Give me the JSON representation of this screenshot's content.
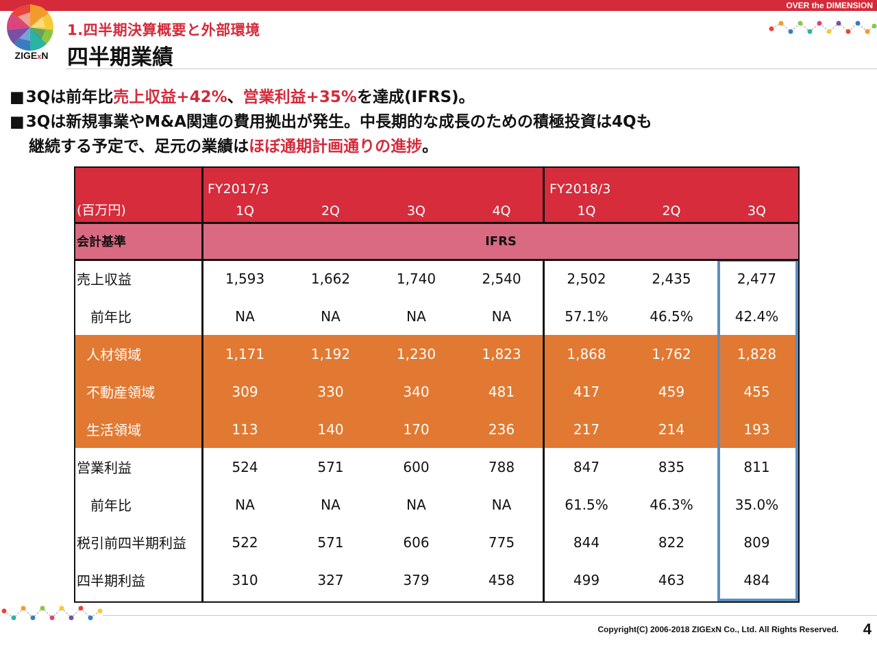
{
  "header": {
    "tagline": "OVER the DIMENSION",
    "logo_text_a": "ZIGE",
    "logo_text_x": "x",
    "logo_text_b": "N",
    "subtitle": "1.四半期決算概要と外部環境",
    "title": "四半期業績"
  },
  "bullets": {
    "marker": "■",
    "b1_a": "3Qは前年比",
    "b1_hl1": "売上収益+42%",
    "b1_b": "、",
    "b1_hl2": "営業利益+35%",
    "b1_c": "を達成(IFRS)。",
    "b2_a": "3Qは新規事業やM&A関連の費用拠出が発生。中長期的な成長のための積極投資は4Qも",
    "b2_b": "継続する予定で、足元の業績は",
    "b2_hl": "ほぼ通期計画通りの進捗",
    "b2_c": "。"
  },
  "table": {
    "unit": "(百万円)",
    "fy1": "FY2017/3",
    "fy2": "FY2018/3",
    "quarters": [
      "1Q",
      "2Q",
      "3Q",
      "4Q",
      "1Q",
      "2Q",
      "3Q"
    ],
    "standard_label": "会計基準",
    "standard_value": "IFRS",
    "rows": [
      {
        "label": "売上収益",
        "values": [
          "1,593",
          "1,662",
          "1,740",
          "2,540",
          "2,502",
          "2,435",
          "2,477"
        ]
      },
      {
        "label": "前年比",
        "values": [
          "NA",
          "NA",
          "NA",
          "NA",
          "57.1%",
          "46.5%",
          "42.4%"
        ]
      },
      {
        "label": "人材領域",
        "values": [
          "1,171",
          "1,192",
          "1,230",
          "1,823",
          "1,868",
          "1,762",
          "1,828"
        ]
      },
      {
        "label": "不動産領域",
        "values": [
          "309",
          "330",
          "340",
          "481",
          "417",
          "459",
          "455"
        ]
      },
      {
        "label": "生活領域",
        "values": [
          "113",
          "140",
          "170",
          "236",
          "217",
          "214",
          "193"
        ]
      },
      {
        "label": "営業利益",
        "values": [
          "524",
          "571",
          "600",
          "788",
          "847",
          "835",
          "811"
        ]
      },
      {
        "label": "前年比",
        "values": [
          "NA",
          "NA",
          "NA",
          "NA",
          "61.5%",
          "46.3%",
          "35.0%"
        ]
      },
      {
        "label": "税引前四半期利益",
        "values": [
          "522",
          "571",
          "606",
          "775",
          "844",
          "822",
          "809"
        ]
      },
      {
        "label": "四半期利益",
        "values": [
          "310",
          "327",
          "379",
          "458",
          "499",
          "463",
          "484"
        ]
      }
    ]
  },
  "colors": {
    "brand_red": "#d42a3a",
    "standard_pink": "#d96a82",
    "segment_orange": "#e17932",
    "highlight_blue": "#5a8ec4"
  },
  "footer": {
    "copyright": "Copyright(C) 2006-2018 ZIGExN Co., Ltd. All Rights Reserved.",
    "page": "4"
  }
}
